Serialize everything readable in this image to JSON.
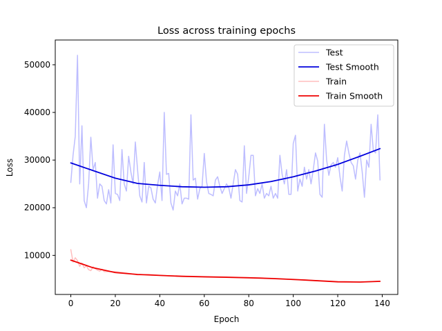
{
  "chart_data": {
    "type": "line",
    "title": "Loss across training epochs",
    "xlabel": "Epoch",
    "ylabel": "Loss",
    "xlim": [
      -7,
      147
    ],
    "ylim": [
      1800,
      55200
    ],
    "xticks": [
      0,
      20,
      40,
      60,
      80,
      100,
      120,
      140
    ],
    "yticks": [
      10000,
      20000,
      30000,
      40000,
      50000
    ],
    "legend_position": "upper right",
    "grid": false,
    "series": [
      {
        "name": "Test",
        "color": "#9999ff",
        "opacity": 0.65,
        "width": 1.5,
        "x": [
          0,
          1,
          2,
          3,
          4,
          5,
          6,
          7,
          8,
          9,
          10,
          11,
          12,
          13,
          14,
          15,
          16,
          17,
          18,
          19,
          20,
          21,
          22,
          23,
          24,
          25,
          26,
          27,
          28,
          29,
          30,
          31,
          32,
          33,
          34,
          35,
          36,
          37,
          38,
          39,
          40,
          41,
          42,
          43,
          44,
          45,
          46,
          47,
          48,
          49,
          50,
          51,
          52,
          53,
          54,
          55,
          56,
          57,
          58,
          59,
          60,
          61,
          62,
          63,
          64,
          65,
          66,
          67,
          68,
          69,
          70,
          71,
          72,
          73,
          74,
          75,
          76,
          77,
          78,
          79,
          80,
          81,
          82,
          83,
          84,
          85,
          86,
          87,
          88,
          89,
          90,
          91,
          92,
          93,
          94,
          95,
          96,
          97,
          98,
          99,
          100,
          101,
          102,
          103,
          104,
          105,
          106,
          107,
          108,
          109,
          110,
          111,
          112,
          113,
          114,
          115,
          116,
          117,
          118,
          119,
          120,
          121,
          122,
          123,
          124,
          125,
          126,
          127,
          128,
          129,
          130,
          131,
          132,
          133,
          134,
          135,
          136,
          137,
          138,
          139
        ],
        "y": [
          25300,
          31000,
          35000,
          52000,
          25000,
          37200,
          21500,
          20000,
          25000,
          34800,
          28000,
          29500,
          22000,
          25000,
          24500,
          21500,
          20800,
          23800,
          21000,
          33200,
          23000,
          22800,
          21500,
          32200,
          25000,
          23500,
          30800,
          27500,
          25000,
          33800,
          28000,
          22500,
          21200,
          29500,
          21000,
          24500,
          24200,
          21800,
          21000,
          24800,
          27500,
          21500,
          40000,
          27000,
          27200,
          21000,
          19500,
          23500,
          22500,
          25000,
          20800,
          22000,
          22000,
          21800,
          39500,
          25800,
          26200,
          21800,
          24000,
          24500,
          31400,
          25500,
          23000,
          22800,
          22500,
          25800,
          26500,
          24500,
          23000,
          24000,
          25000,
          24200,
          22000,
          25000,
          28000,
          27000,
          21500,
          21200,
          33000,
          23000,
          26500,
          31000,
          31000,
          22500,
          24000,
          23000,
          25000,
          22000,
          23000,
          22500,
          24500,
          22000,
          23000,
          22000,
          31000,
          27000,
          25000,
          28000,
          22800,
          22800,
          33500,
          35200,
          23500,
          26000,
          24500,
          28500,
          26000,
          28000,
          25000,
          28000,
          31500,
          29800,
          22800,
          22200,
          37500,
          30000,
          26800,
          29000,
          29500,
          28500,
          30500,
          26500,
          23500,
          31000,
          34000,
          31500,
          29500,
          28800,
          26000,
          30000,
          31500,
          27500,
          22200,
          30000,
          28500,
          37500,
          32000,
          31500,
          39500,
          25800
        ]
      },
      {
        "name": "Test Smooth",
        "color": "#0000dd",
        "opacity": 1,
        "width": 1.8,
        "x": [
          0,
          10,
          20,
          30,
          40,
          50,
          60,
          70,
          80,
          90,
          100,
          110,
          120,
          130,
          139
        ],
        "y": [
          29400,
          27800,
          26200,
          25100,
          24700,
          24400,
          24300,
          24400,
          24800,
          25500,
          26500,
          27700,
          29100,
          30800,
          32400
        ]
      },
      {
        "name": "Train",
        "color": "#ff9999",
        "opacity": 0.65,
        "width": 1.5,
        "x": [
          0,
          1,
          2,
          3,
          4,
          5,
          6,
          7,
          8,
          9,
          10,
          11,
          12,
          13,
          14,
          15,
          20,
          25,
          30,
          35,
          40,
          45,
          50,
          55,
          60,
          65,
          70,
          75,
          80,
          85,
          90,
          95,
          100,
          105,
          110,
          115,
          120,
          125,
          130,
          135,
          139
        ],
        "y": [
          11200,
          8600,
          9500,
          8900,
          7700,
          8400,
          7400,
          7800,
          7000,
          6800,
          7600,
          7200,
          6900,
          6700,
          7100,
          6600,
          6600,
          6300,
          5900,
          6000,
          5800,
          5700,
          5700,
          5600,
          5500,
          5500,
          5500,
          5400,
          5300,
          5300,
          5200,
          5100,
          4900,
          4900,
          4700,
          4600,
          4500,
          4500,
          4400,
          4500,
          4600
        ]
      },
      {
        "name": "Train Smooth",
        "color": "#ee0000",
        "opacity": 1,
        "width": 1.8,
        "x": [
          0,
          5,
          10,
          20,
          30,
          40,
          50,
          60,
          70,
          80,
          90,
          100,
          110,
          120,
          130,
          139
        ],
        "y": [
          9000,
          8200,
          7400,
          6400,
          6000,
          5800,
          5600,
          5500,
          5400,
          5300,
          5150,
          4950,
          4700,
          4450,
          4400,
          4550
        ]
      }
    ]
  }
}
